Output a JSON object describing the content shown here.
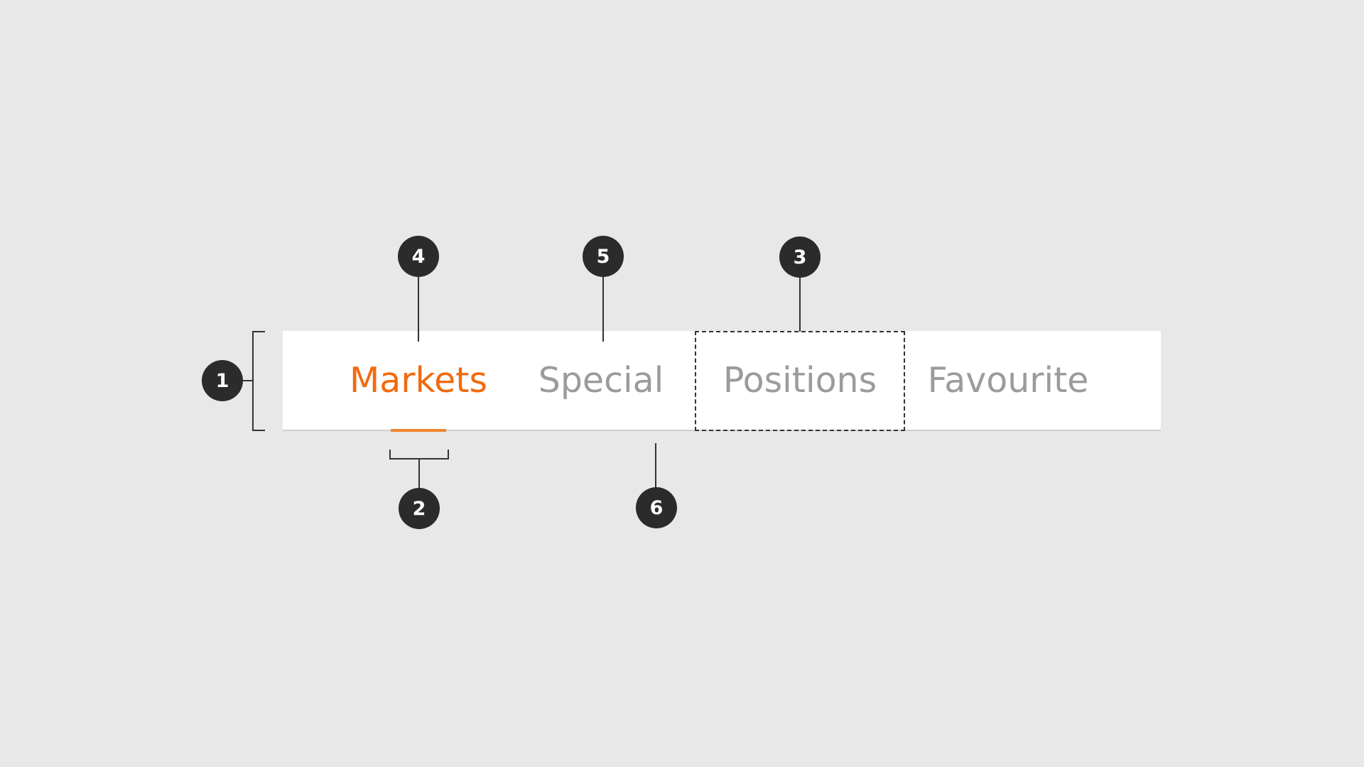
{
  "tabs": [
    {
      "label": "Markets",
      "active": true
    },
    {
      "label": "Special",
      "active": false
    },
    {
      "label": "Positions",
      "active": false
    },
    {
      "label": "Favourite",
      "active": false
    }
  ],
  "callouts": {
    "c1": "1",
    "c2": "2",
    "c3": "3",
    "c4": "4",
    "c5": "5",
    "c6": "6"
  },
  "colors": {
    "background": "#e8e8e8",
    "active_tab": "#f26a10",
    "inactive_tab": "#9b9b9b",
    "indicator": "#f2852e",
    "callout": "#2b2b2b"
  }
}
